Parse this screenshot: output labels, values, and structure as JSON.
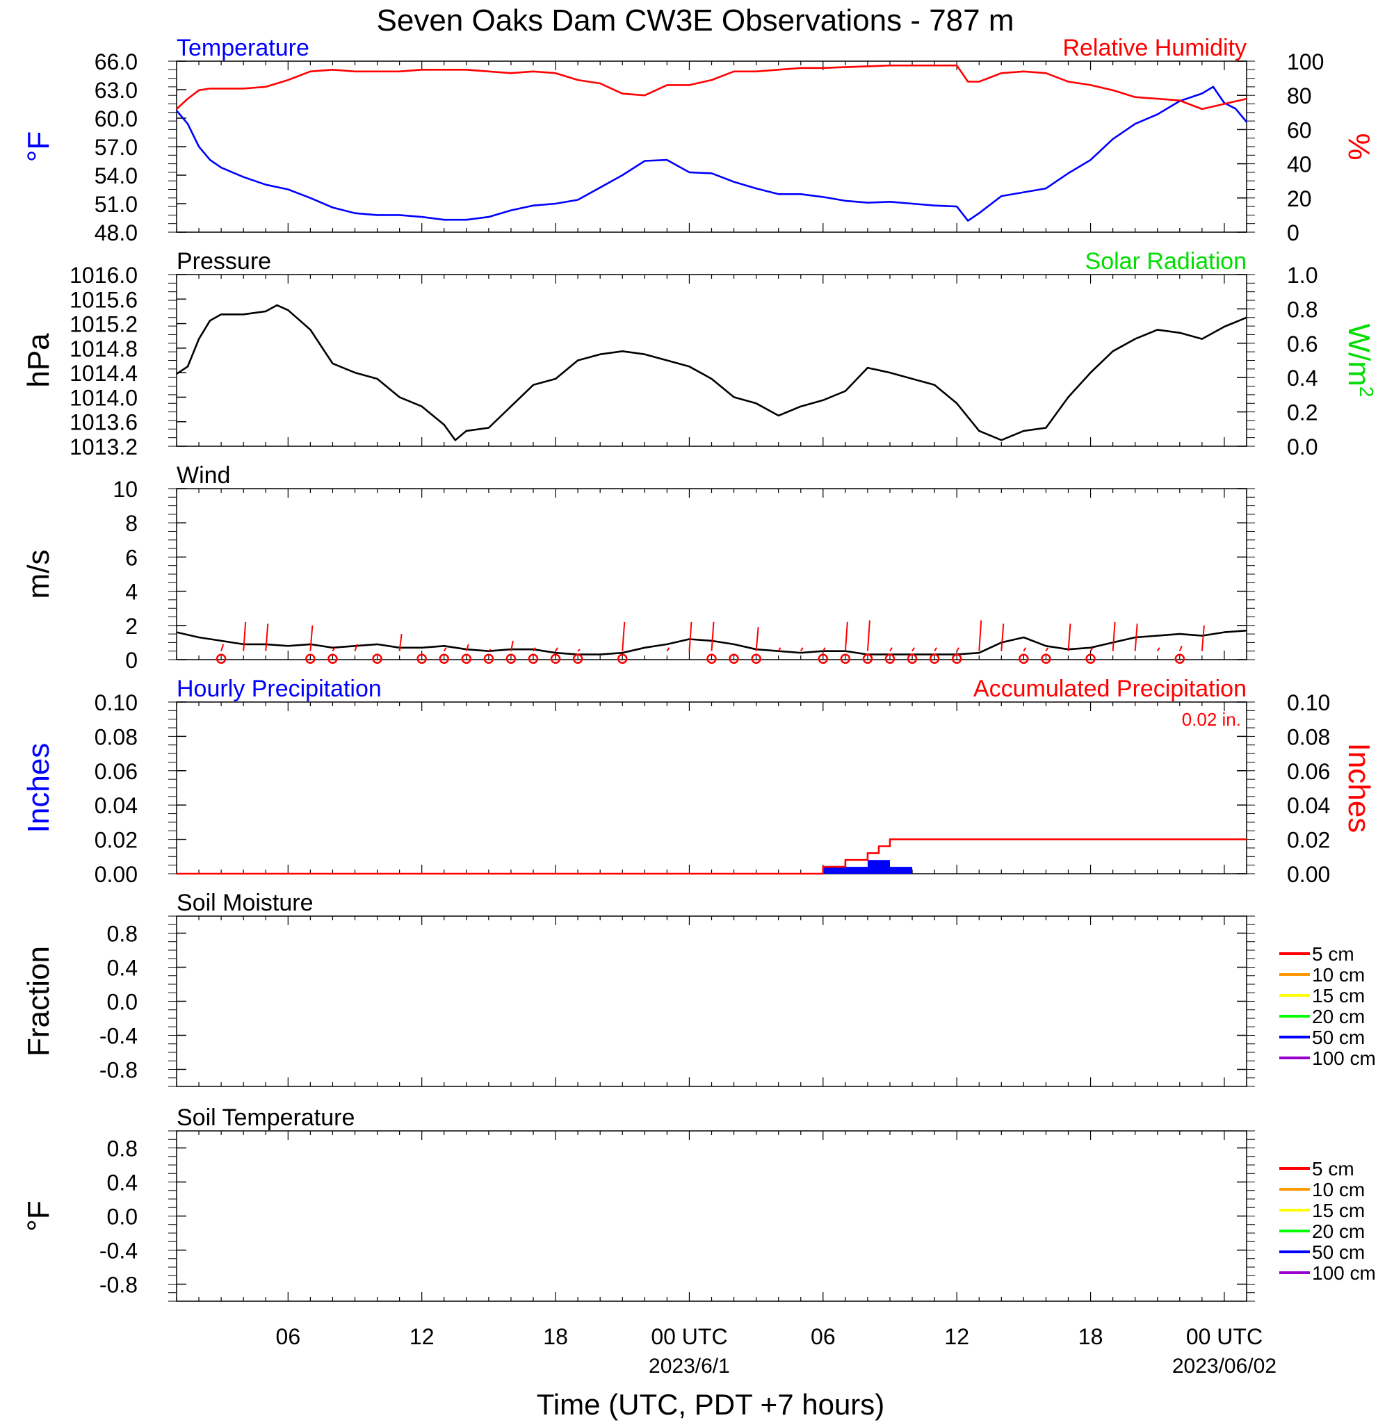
{
  "title": "Seven Oaks Dam CW3E Observations - 787 m",
  "xlabel": "Time (UTC, PDT +7 hours)",
  "time_ticks": [
    "06",
    "12",
    "18",
    "00 UTC",
    "06",
    "12",
    "18",
    "00 UTC"
  ],
  "date_labels": [
    "2023/6/1",
    "2023/06/02"
  ],
  "colors": {
    "red": "#ff0000",
    "blue": "#0000ff",
    "green": "#00dd00",
    "black": "#000000"
  },
  "chart_data": [
    {
      "type": "line",
      "panel": "temperature-humidity",
      "left_title": "Temperature",
      "right_title": "Relative Humidity",
      "ylabel_left_unit": "°F",
      "ylabel_right_unit": "%",
      "ylim_left": [
        48,
        66
      ],
      "yticks_left": [
        "66.0",
        "63.0",
        "60.0",
        "57.0",
        "54.0",
        "51.0",
        "48.0"
      ],
      "ylim_right": [
        0,
        100
      ],
      "yticks_right": [
        "100",
        "80",
        "60",
        "40",
        "20",
        "0"
      ],
      "x_unit": "hours since 2023-05-31 01 UTC",
      "series": [
        {
          "name": "Temperature",
          "axis": "left",
          "color": "#0000ff",
          "x": [
            0,
            0.5,
            1,
            1.5,
            2,
            3,
            4,
            5,
            6,
            7,
            8,
            9,
            10,
            11,
            12,
            13,
            14,
            15,
            16,
            17,
            18,
            19,
            20,
            21,
            22,
            23,
            24,
            25,
            26,
            27,
            28,
            29,
            30,
            31,
            32,
            33,
            34,
            35,
            35.5,
            36,
            37,
            38,
            39,
            40,
            41,
            42,
            43,
            44,
            45,
            46,
            46.5,
            47,
            47.5,
            48
          ],
          "values": [
            60.8,
            59.4,
            57.0,
            55.6,
            54.8,
            53.8,
            53.0,
            52.5,
            51.6,
            50.6,
            50.0,
            49.8,
            49.8,
            49.6,
            49.3,
            49.3,
            49.6,
            50.3,
            50.8,
            51.0,
            51.4,
            52.7,
            54.0,
            55.5,
            55.6,
            54.3,
            54.2,
            53.3,
            52.6,
            52.0,
            52.0,
            51.7,
            51.3,
            51.1,
            51.2,
            51.0,
            50.8,
            50.7,
            49.2,
            50.0,
            51.8,
            52.2,
            52.6,
            54.2,
            55.6,
            57.8,
            59.4,
            60.4,
            61.8,
            62.6,
            63.3,
            61.6,
            61.0,
            59.6
          ]
        },
        {
          "name": "Relative Humidity",
          "axis": "right",
          "color": "#ff0000",
          "x": [
            0,
            0.5,
            1,
            1.5,
            2,
            3,
            4,
            5,
            6,
            7,
            8,
            9,
            10,
            11,
            12,
            13,
            14,
            15,
            16,
            17,
            18,
            19,
            20,
            21,
            22,
            23,
            24,
            25,
            26,
            27,
            28,
            29,
            30,
            31,
            32,
            33,
            34,
            35,
            35.5,
            36,
            37,
            38,
            39,
            40,
            41,
            42,
            43,
            44,
            45,
            46,
            47,
            48
          ],
          "values": [
            72,
            78,
            83,
            84,
            84,
            84,
            85,
            89,
            94,
            95,
            94,
            94,
            94,
            95,
            95,
            95,
            94,
            93,
            94,
            93,
            89,
            87,
            81,
            80,
            86,
            86,
            89,
            94,
            94,
            95,
            96,
            96,
            96.5,
            97,
            97.5,
            97.5,
            97.5,
            97.5,
            88,
            88,
            93,
            94,
            93,
            88,
            86,
            83,
            79,
            78,
            77,
            72,
            75,
            78
          ]
        }
      ]
    },
    {
      "type": "line",
      "panel": "pressure-solar",
      "left_title": "Pressure",
      "right_title": "Solar Radiation",
      "ylabel_left_unit": "hPa",
      "ylabel_right_unit": "W/m",
      "ylabel_right_sup": "2",
      "ylim_left": [
        1013.2,
        1016.0
      ],
      "yticks_left": [
        "1016.0",
        "1015.6",
        "1015.2",
        "1014.8",
        "1014.4",
        "1014.0",
        "1013.6",
        "1013.2"
      ],
      "ylim_right": [
        0,
        1
      ],
      "yticks_right": [
        "1.0",
        "0.8",
        "0.6",
        "0.4",
        "0.2",
        "0.0"
      ],
      "x_unit": "hours since 2023-05-31 01 UTC",
      "series": [
        {
          "name": "Pressure",
          "axis": "left",
          "color": "#000000",
          "x": [
            0,
            0.5,
            1,
            1.5,
            2,
            3,
            4,
            4.5,
            5,
            6,
            7,
            8,
            9,
            10,
            11,
            12,
            12.5,
            13,
            14,
            15,
            16,
            17,
            18,
            19,
            20,
            21,
            22,
            23,
            24,
            25,
            26,
            27,
            28,
            29,
            30,
            31,
            32,
            33,
            34,
            35,
            36,
            37,
            38,
            39,
            40,
            41,
            42,
            43,
            44,
            45,
            46,
            47,
            48
          ],
          "values": [
            1014.38,
            1014.5,
            1014.95,
            1015.25,
            1015.35,
            1015.35,
            1015.4,
            1015.5,
            1015.42,
            1015.1,
            1014.55,
            1014.4,
            1014.3,
            1014.0,
            1013.85,
            1013.55,
            1013.3,
            1013.45,
            1013.5,
            1013.85,
            1014.2,
            1014.3,
            1014.6,
            1014.7,
            1014.75,
            1014.7,
            1014.6,
            1014.5,
            1014.3,
            1014.0,
            1013.9,
            1013.7,
            1013.85,
            1013.95,
            1014.1,
            1014.48,
            1014.4,
            1014.3,
            1014.2,
            1013.9,
            1013.45,
            1013.3,
            1013.45,
            1013.5,
            1014.0,
            1014.4,
            1014.75,
            1014.95,
            1015.1,
            1015.05,
            1014.95,
            1015.15,
            1015.3
          ]
        }
      ]
    },
    {
      "type": "line",
      "panel": "wind",
      "left_title": "Wind",
      "ylabel_left_unit": "m/s",
      "ylim_left": [
        0,
        10
      ],
      "yticks_left": [
        "10",
        "8",
        "6",
        "4",
        "2",
        "0"
      ],
      "x_unit": "hours since 2023-05-31 01 UTC",
      "series": [
        {
          "name": "Wind speed",
          "axis": "left",
          "color": "#000000",
          "x": [
            0,
            1,
            2,
            3,
            4,
            5,
            6,
            7,
            8,
            9,
            10,
            11,
            12,
            13,
            14,
            15,
            16,
            17,
            18,
            19,
            20,
            21,
            22,
            23,
            24,
            25,
            26,
            27,
            28,
            29,
            30,
            31,
            32,
            33,
            34,
            35,
            36,
            37,
            38,
            39,
            40,
            41,
            42,
            43,
            44,
            45,
            46,
            47,
            48
          ],
          "values": [
            1.6,
            1.3,
            1.1,
            0.9,
            0.9,
            0.8,
            0.9,
            0.7,
            0.8,
            0.9,
            0.7,
            0.7,
            0.8,
            0.6,
            0.5,
            0.6,
            0.6,
            0.4,
            0.3,
            0.3,
            0.4,
            0.7,
            0.9,
            1.2,
            1.1,
            0.9,
            0.6,
            0.5,
            0.4,
            0.5,
            0.5,
            0.3,
            0.3,
            0.3,
            0.3,
            0.3,
            0.4,
            1.0,
            1.3,
            0.8,
            0.6,
            0.7,
            1.0,
            1.3,
            1.4,
            1.5,
            1.4,
            1.6,
            1.7
          ]
        }
      ],
      "wind_barbs": {
        "x": [
          2,
          3,
          4,
          6,
          7,
          8,
          10,
          12,
          13,
          14,
          15,
          16,
          17,
          18,
          19,
          20,
          22,
          23,
          24,
          26,
          27,
          28,
          29,
          30,
          31,
          32,
          33,
          34,
          35,
          36,
          37,
          38,
          39,
          40,
          41,
          42,
          43,
          44,
          45,
          46
        ],
        "length": [
          0.4,
          1.7,
          1.6,
          1.5,
          0.2,
          0.4,
          1.0,
          0.2,
          0.4,
          0.1,
          0.6,
          0.2,
          0.2,
          0.1,
          0.0,
          1.7,
          0.2,
          1.7,
          1.7,
          1.4,
          0.2,
          0.2,
          0.2,
          1.7,
          1.8,
          0.2,
          0.2,
          0.2,
          0.2,
          1.8,
          1.6,
          0.2,
          0.2,
          1.6,
          0.2,
          1.7,
          1.6,
          0.2,
          0.3,
          1.5
        ]
      },
      "calm_circles_x": [
        2,
        6,
        7,
        9,
        11,
        12,
        13,
        14,
        15,
        16,
        17,
        18,
        20,
        24,
        25,
        26,
        29,
        30,
        31,
        32,
        33,
        34,
        35,
        38,
        39,
        41,
        45
      ]
    },
    {
      "type": "bar",
      "panel": "precipitation",
      "left_title": "Hourly Precipitation",
      "right_title": "Accumulated Precipitation",
      "annotation": "0.02 in.",
      "ylabel_left_unit": "Inches",
      "ylabel_right_unit": "Inches",
      "ylim_left": [
        0,
        0.1
      ],
      "yticks_left": [
        "0.10",
        "0.08",
        "0.06",
        "0.04",
        "0.02",
        "0.00"
      ],
      "ylim_right": [
        0,
        0.1
      ],
      "yticks_right": [
        "0.10",
        "0.08",
        "0.06",
        "0.04",
        "0.02",
        "0.00"
      ],
      "x_unit": "hours since 2023-05-31 01 UTC",
      "series": [
        {
          "name": "Hourly Precipitation",
          "axis": "left",
          "color": "#0000ff",
          "x": [
            29.5,
            30.5,
            31.5,
            32.5
          ],
          "values": [
            0.004,
            0.004,
            0.008,
            0.004
          ]
        },
        {
          "name": "Accumulated Precipitation",
          "axis": "right",
          "color": "#ff0000",
          "x": [
            0,
            29,
            29,
            30,
            30,
            31,
            31,
            31.5,
            31.5,
            32,
            32,
            48
          ],
          "values": [
            0,
            0,
            0.004,
            0.004,
            0.008,
            0.008,
            0.012,
            0.012,
            0.016,
            0.016,
            0.02,
            0.02
          ]
        }
      ]
    },
    {
      "type": "line",
      "panel": "soil-moisture",
      "left_title": "Soil Moisture",
      "ylabel_left_unit": "Fraction",
      "ylim_left": [
        -1,
        1
      ],
      "yticks_left": [
        "0.8",
        "0.4",
        "0.0",
        "-0.4",
        "-0.8"
      ],
      "legend": [
        {
          "label": "5 cm",
          "color": "#ff0000"
        },
        {
          "label": "10 cm",
          "color": "#ff9900"
        },
        {
          "label": "15 cm",
          "color": "#ffff00"
        },
        {
          "label": "20 cm",
          "color": "#00ff00"
        },
        {
          "label": "50 cm",
          "color": "#0000ff"
        },
        {
          "label": "100 cm",
          "color": "#9900cc"
        }
      ],
      "series": []
    },
    {
      "type": "line",
      "panel": "soil-temperature",
      "left_title": "Soil Temperature",
      "ylabel_left_unit": "°F",
      "ylim_left": [
        -1,
        1
      ],
      "yticks_left": [
        "0.8",
        "0.4",
        "0.0",
        "-0.4",
        "-0.8"
      ],
      "legend": [
        {
          "label": "5 cm",
          "color": "#ff0000"
        },
        {
          "label": "10 cm",
          "color": "#ff9900"
        },
        {
          "label": "15 cm",
          "color": "#ffff00"
        },
        {
          "label": "20 cm",
          "color": "#00ff00"
        },
        {
          "label": "50 cm",
          "color": "#0000ff"
        },
        {
          "label": "100 cm",
          "color": "#9900cc"
        }
      ],
      "series": []
    }
  ]
}
